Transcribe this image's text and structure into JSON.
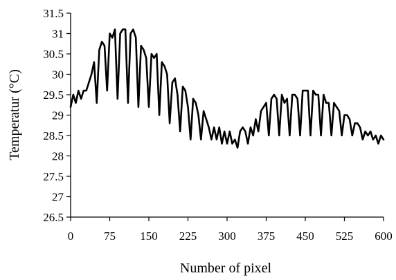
{
  "chart_data": {
    "type": "line",
    "title": "",
    "xlabel": "Number of pixel",
    "ylabel": "Temperatur (°C)",
    "xlim": [
      0,
      600
    ],
    "ylim": [
      26.5,
      31.5
    ],
    "xticks": [
      0,
      75,
      150,
      225,
      300,
      375,
      450,
      525,
      600
    ],
    "yticks": [
      26.5,
      27,
      27.5,
      28,
      28.5,
      29,
      29.5,
      30,
      30.5,
      31,
      31.5
    ],
    "xtick_labels": [
      "0",
      "75",
      "150",
      "225",
      "300",
      "375",
      "450",
      "525",
      "600"
    ],
    "ytick_labels": [
      "26.5",
      "27",
      "27.5",
      "28",
      "28.5",
      "29",
      "29.5",
      "30",
      "30.5",
      "31",
      "31.5"
    ],
    "grid": false,
    "legend": false,
    "series": [
      {
        "color": "#000000",
        "x": [
          0,
          5,
          10,
          15,
          20,
          25,
          30,
          35,
          40,
          45,
          50,
          55,
          60,
          65,
          70,
          75,
          80,
          85,
          90,
          95,
          100,
          105,
          110,
          115,
          120,
          125,
          130,
          135,
          140,
          145,
          150,
          155,
          160,
          165,
          170,
          175,
          180,
          185,
          190,
          195,
          200,
          205,
          210,
          215,
          220,
          225,
          230,
          235,
          240,
          245,
          250,
          255,
          260,
          265,
          270,
          275,
          280,
          285,
          290,
          295,
          300,
          305,
          310,
          315,
          320,
          325,
          330,
          335,
          340,
          345,
          350,
          355,
          360,
          365,
          370,
          375,
          380,
          385,
          390,
          395,
          400,
          405,
          410,
          415,
          420,
          425,
          430,
          435,
          440,
          445,
          450,
          455,
          460,
          465,
          470,
          475,
          480,
          485,
          490,
          495,
          500,
          505,
          510,
          515,
          520,
          525,
          530,
          535,
          540,
          545,
          550,
          555,
          560,
          565,
          570,
          575,
          580,
          585,
          590,
          595,
          600
        ],
        "y": [
          29.2,
          29.5,
          29.3,
          29.6,
          29.4,
          29.6,
          29.6,
          29.8,
          30.0,
          30.3,
          29.3,
          30.6,
          30.8,
          30.7,
          29.6,
          31.0,
          30.9,
          31.1,
          29.4,
          31.0,
          31.1,
          31.1,
          29.3,
          31.0,
          31.1,
          30.9,
          29.2,
          30.7,
          30.6,
          30.4,
          29.2,
          30.5,
          30.4,
          30.5,
          29.0,
          30.3,
          30.2,
          30.0,
          28.8,
          29.8,
          29.9,
          29.5,
          28.6,
          29.7,
          29.6,
          29.2,
          28.4,
          29.4,
          29.3,
          29.0,
          28.4,
          29.1,
          28.9,
          28.7,
          28.4,
          28.7,
          28.4,
          28.7,
          28.3,
          28.6,
          28.3,
          28.6,
          28.3,
          28.4,
          28.2,
          28.6,
          28.7,
          28.6,
          28.3,
          28.7,
          28.5,
          28.9,
          28.6,
          29.1,
          29.2,
          29.3,
          28.5,
          29.4,
          29.5,
          29.4,
          28.5,
          29.5,
          29.3,
          29.4,
          28.5,
          29.5,
          29.5,
          29.4,
          28.5,
          29.6,
          29.6,
          29.6,
          28.5,
          29.6,
          29.5,
          29.5,
          28.5,
          29.5,
          29.3,
          29.3,
          28.5,
          29.3,
          29.2,
          29.1,
          28.5,
          29.0,
          29.0,
          28.9,
          28.5,
          28.8,
          28.8,
          28.7,
          28.4,
          28.6,
          28.5,
          28.6,
          28.4,
          28.5,
          28.3,
          28.5,
          28.4
        ]
      }
    ]
  }
}
